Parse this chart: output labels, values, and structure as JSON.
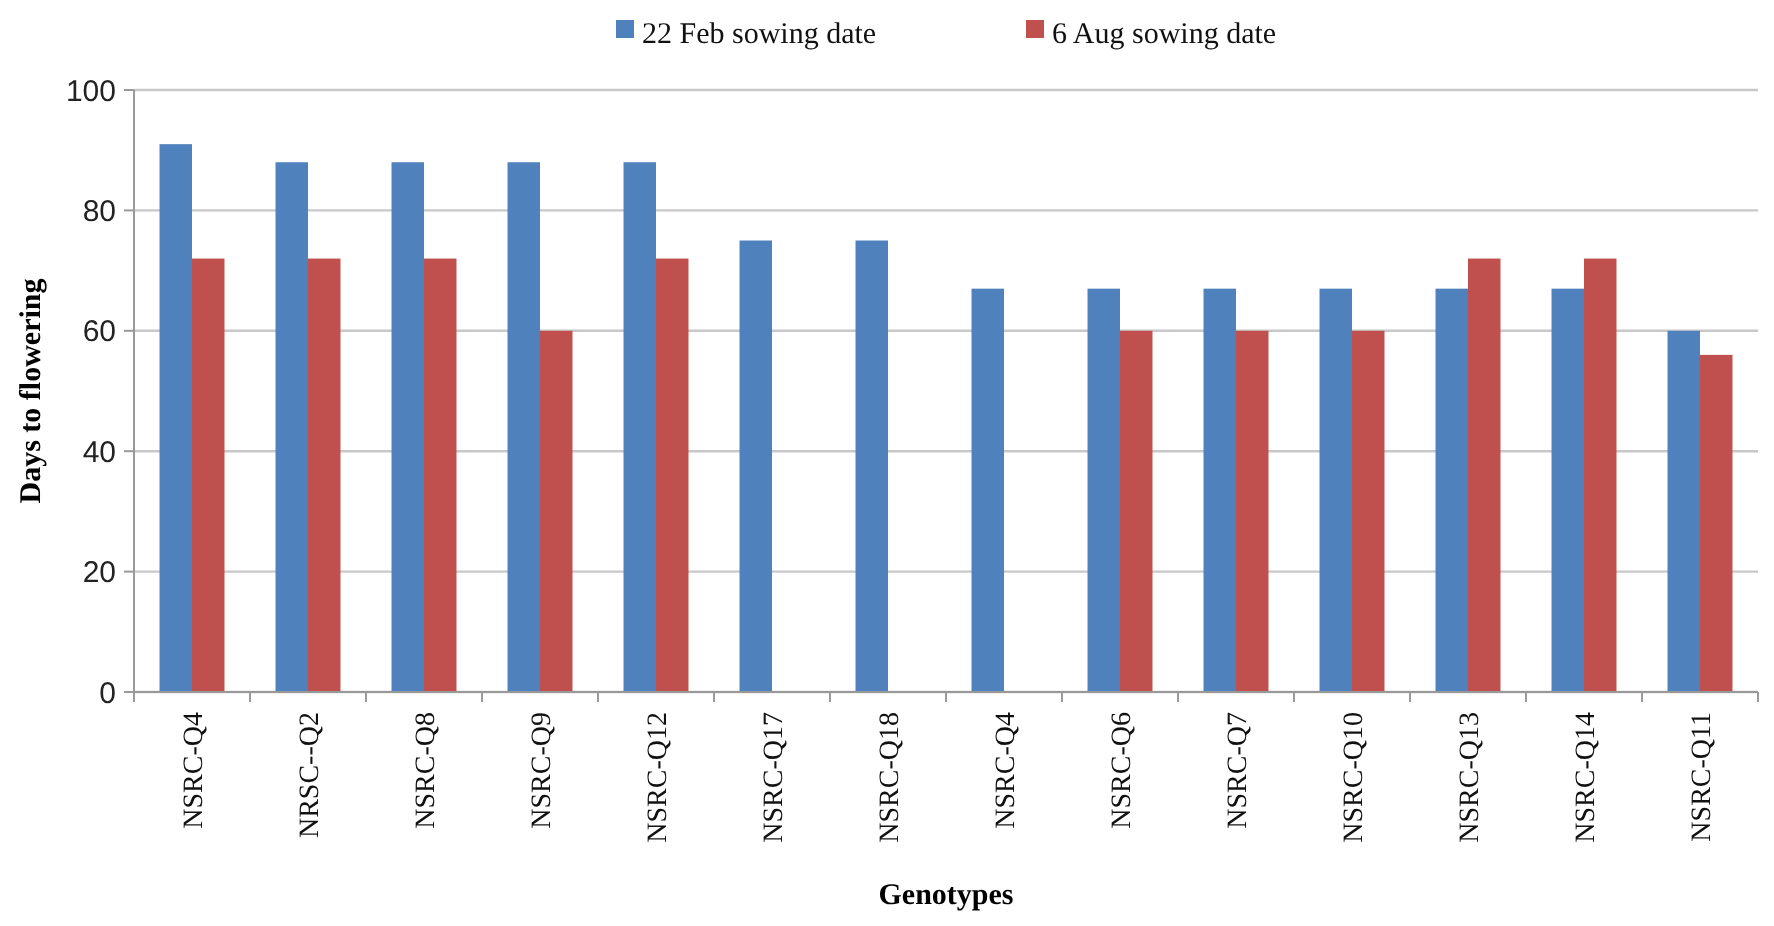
{
  "chart_data": {
    "type": "bar",
    "xlabel": "Genotypes",
    "ylabel": "Days to flowering",
    "categories": [
      "NSRC-Q4",
      "NRSC--Q2",
      "NSRC-Q8",
      "NSRC-Q9",
      "NSRC-Q12",
      "NSRC-Q17",
      "NSRC-Q18",
      "NSRC-Q4",
      "NSRC-Q6",
      "NSRC-Q7",
      "NSRC-Q10",
      "NSRC-Q13",
      "NSRC-Q14",
      "NSRC-Q11"
    ],
    "series": [
      {
        "name": "22 Feb sowing date",
        "color": "#4f81bd",
        "values": [
          91,
          88,
          88,
          88,
          88,
          75,
          75,
          67,
          67,
          67,
          67,
          67,
          67,
          60
        ]
      },
      {
        "name": "6 Aug sowing date",
        "color": "#c0504d",
        "values": [
          72,
          72,
          72,
          60,
          72,
          null,
          null,
          null,
          60,
          60,
          60,
          72,
          72,
          56
        ]
      }
    ],
    "ylim": [
      0,
      100
    ],
    "yticks": [
      0,
      20,
      40,
      60,
      80,
      100
    ],
    "grid": "y",
    "legend": "top"
  }
}
